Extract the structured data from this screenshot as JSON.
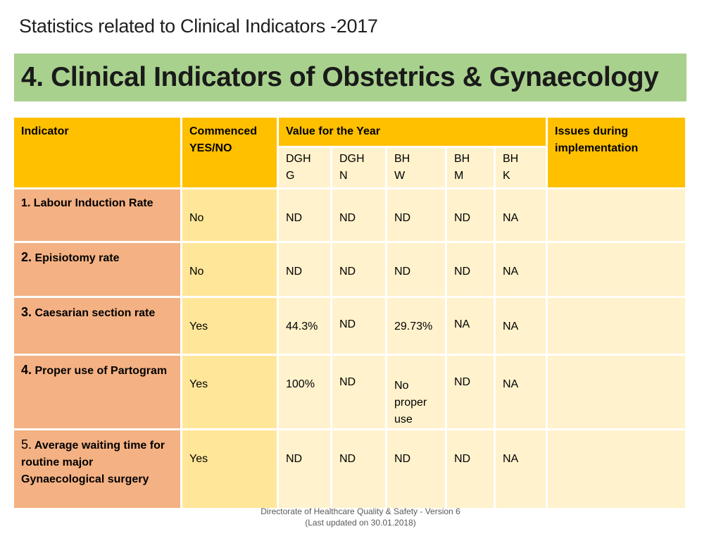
{
  "title": "Statistics related to Clinical Indicators -2017",
  "banner": "4. Clinical Indicators of Obstetrics & Gynaecology",
  "header": {
    "indicator": "Indicator",
    "commenced_1": "Commenced",
    "commenced_2": "YES/NO",
    "value_for_year": "Value for the Year",
    "issues_1": "Issues during",
    "issues_2": "implementation"
  },
  "hospitals": [
    {
      "l1": "DGH",
      "l2": "G"
    },
    {
      "l1": "DGH",
      "l2": "N"
    },
    {
      "l1": "BH",
      "l2": "W"
    },
    {
      "l1": "BH",
      "l2": "M"
    },
    {
      "l1": "BH",
      "l2": "K"
    }
  ],
  "rows": [
    {
      "num": "1.",
      "label": "Labour Induction Rate",
      "commenced": "No",
      "v": [
        "ND",
        "ND",
        "ND",
        "ND",
        "NA"
      ],
      "issues": ""
    },
    {
      "num": "2.",
      "label": "Episiotomy rate",
      "commenced": "No",
      "v": [
        "ND",
        "ND",
        "ND",
        "ND",
        "NA"
      ],
      "issues": ""
    },
    {
      "num": "3.",
      "label": "Caesarian section rate",
      "commenced": "Yes",
      "v": [
        "44.3%",
        "ND",
        "29.73%",
        "NA",
        "NA"
      ],
      "issues": ""
    },
    {
      "num": "4.",
      "label": "Proper use of Partogram",
      "commenced": "Yes",
      "v": [
        "100%",
        "ND",
        "No proper use",
        "ND",
        "NA"
      ],
      "issues": ""
    },
    {
      "num": "5.",
      "label": "Average waiting time for routine major Gynaecological surgery",
      "commenced": "Yes",
      "v": [
        "ND",
        "ND",
        "ND",
        "ND",
        "NA"
      ],
      "issues": ""
    }
  ],
  "footer": {
    "line1": "Directorate of Healthcare Quality & Safety - Version 6",
    "line2": "(Last updated on 30.01.2018)"
  }
}
